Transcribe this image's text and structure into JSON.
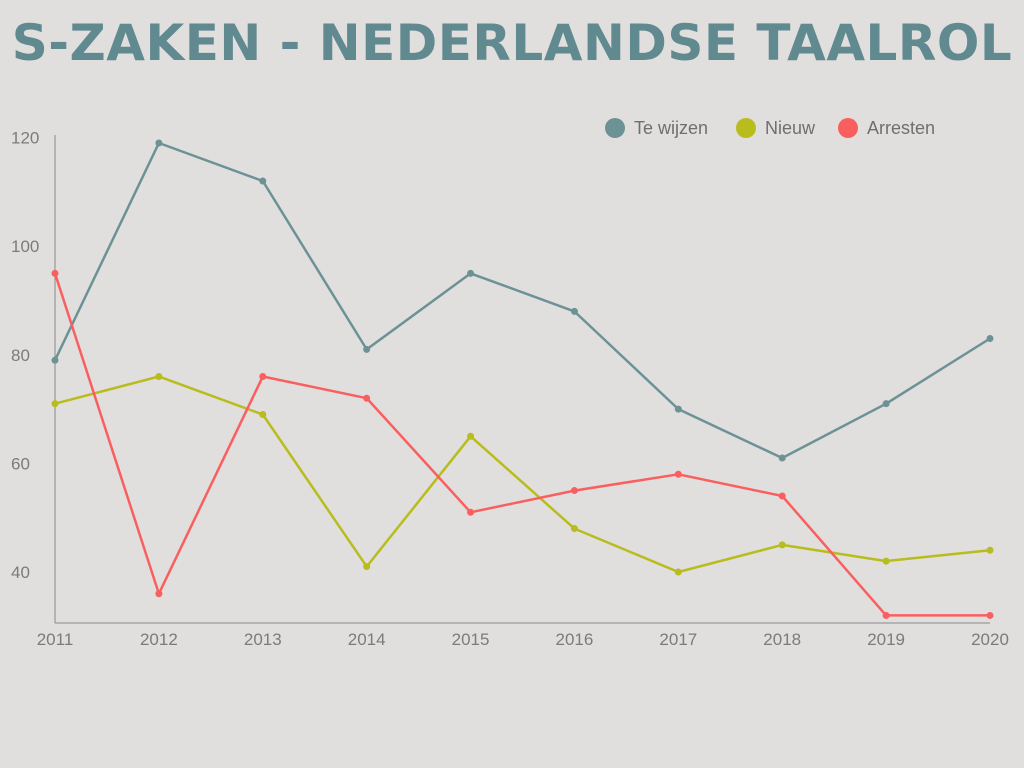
{
  "title": "S-ZAKEN - NEDERLANDSE TAALROL",
  "colors": {
    "background": "#e0dfde",
    "title": "#608a90",
    "axis": "#8a8a8a"
  },
  "chart_data": {
    "type": "line",
    "title": "S-ZAKEN - NEDERLANDSE TAALROL",
    "xlabel": "",
    "ylabel": "",
    "categories": [
      "2011",
      "2012",
      "2013",
      "2014",
      "2015",
      "2016",
      "2017",
      "2018",
      "2019",
      "2020"
    ],
    "series": [
      {
        "name": "Te wijzen",
        "color": "#6c9296",
        "values": [
          79,
          119,
          112,
          81,
          95,
          88,
          70,
          61,
          71,
          83
        ]
      },
      {
        "name": "Nieuw",
        "color": "#b8bc1c",
        "values": [
          71,
          76,
          69,
          41,
          65,
          48,
          40,
          45,
          42,
          44
        ]
      },
      {
        "name": "Arresten",
        "color": "#fa5f5f",
        "values": [
          95,
          36,
          76,
          72,
          51,
          55,
          58,
          54,
          32,
          32
        ]
      }
    ],
    "yticks": [
      40,
      60,
      80,
      100,
      120
    ],
    "ylim": [
      30,
      123
    ],
    "grid": false,
    "legend_position": "top-right"
  }
}
